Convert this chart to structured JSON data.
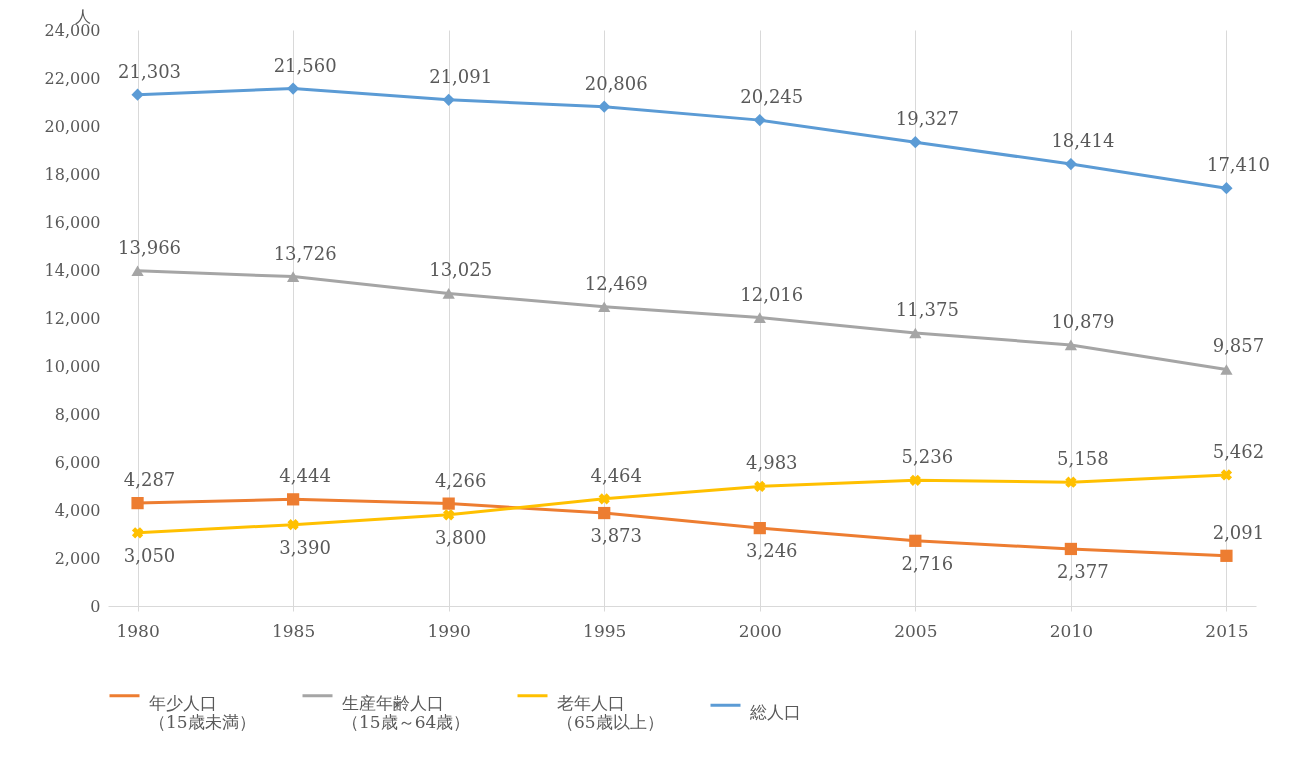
{
  "chart_data": {
    "type": "line",
    "ylabel": "人",
    "categories": [
      "1980",
      "1985",
      "1990",
      "1995",
      "2000",
      "2005",
      "2010",
      "2015"
    ],
    "series": [
      {
        "name": "年少人口（15歳未満）",
        "color": "#ed7d31",
        "marker": "square",
        "values": [
          4287,
          4444,
          4266,
          3873,
          3246,
          2716,
          2377,
          2091
        ],
        "value_labels": [
          "4,287",
          "4,444",
          "4,266",
          "3,873",
          "3,246",
          "2,716",
          "2,377",
          "2,091"
        ]
      },
      {
        "name": "生産年齢人口（15歳～64歳）",
        "color": "#a5a5a5",
        "marker": "triangle",
        "values": [
          13966,
          13726,
          13025,
          12469,
          12016,
          11375,
          10879,
          9857
        ],
        "value_labels": [
          "13,966",
          "13,726",
          "13,025",
          "12,469",
          "12,016",
          "11,375",
          "10,879",
          "9,857"
        ]
      },
      {
        "name": "老年人口（65歳以上）",
        "color": "#ffc000",
        "marker": "cross",
        "values": [
          3050,
          3390,
          3800,
          4464,
          4983,
          5236,
          5158,
          5462
        ],
        "value_labels": [
          "3,050",
          "3,390",
          "3,800",
          "4,464",
          "4,983",
          "5,236",
          "5,158",
          "5,462"
        ]
      },
      {
        "name": "総人口",
        "color": "#5b9bd5",
        "marker": "diamond",
        "values": [
          21303,
          21560,
          21091,
          20806,
          20245,
          19327,
          18414,
          17410
        ],
        "value_labels": [
          "21,303",
          "21,560",
          "21,091",
          "20,806",
          "20,245",
          "19,327",
          "18,414",
          "17,410"
        ]
      }
    ],
    "ylim": [
      0,
      24000
    ],
    "yticks": [
      {
        "value": 0,
        "label": "0"
      },
      {
        "value": 2000,
        "label": "2,000"
      },
      {
        "value": 4000,
        "label": "4,000"
      },
      {
        "value": 6000,
        "label": "6,000"
      },
      {
        "value": 8000,
        "label": "8,000"
      },
      {
        "value": 10000,
        "label": "10,000"
      },
      {
        "value": 12000,
        "label": "12,000"
      },
      {
        "value": 14000,
        "label": "14,000"
      },
      {
        "value": 16000,
        "label": "16,000"
      },
      {
        "value": 18000,
        "label": "18,000"
      },
      {
        "value": 20000,
        "label": "20,000"
      },
      {
        "value": 22000,
        "label": "22,000"
      },
      {
        "value": 24000,
        "label": "24,000"
      }
    ],
    "grid": "x",
    "legend": "bottom"
  }
}
